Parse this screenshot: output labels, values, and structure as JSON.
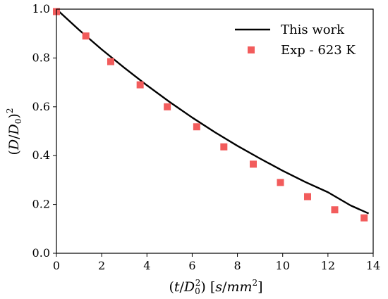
{
  "chart_data": {
    "type": "line",
    "title": "",
    "xlabel": "(t/D₀²) [s/mm²]",
    "ylabel": "(D/D₀)²",
    "xlim": [
      0,
      14
    ],
    "ylim": [
      0.0,
      1.0
    ],
    "xticks": [
      "0",
      "2",
      "4",
      "6",
      "8",
      "10",
      "12",
      "14"
    ],
    "yticks": [
      "0.0",
      "0.2",
      "0.4",
      "0.6",
      "0.8",
      "1.0"
    ],
    "grid": false,
    "legend_position": "top-right",
    "series": [
      {
        "name": "This work",
        "kind": "line",
        "color": "#000000",
        "x": [
          0,
          1,
          2,
          3,
          4,
          5,
          6,
          7,
          8,
          9,
          10,
          11,
          12,
          13,
          13.8
        ],
        "y": [
          1.0,
          0.915,
          0.835,
          0.76,
          0.688,
          0.62,
          0.556,
          0.496,
          0.44,
          0.388,
          0.338,
          0.292,
          0.25,
          0.196,
          0.163
        ]
      },
      {
        "name": "Exp - 623 K",
        "kind": "scatter",
        "color": "#f25c5c",
        "x": [
          0.0,
          1.3,
          2.4,
          3.7,
          4.9,
          6.2,
          7.4,
          8.7,
          9.9,
          11.1,
          12.3,
          13.6
        ],
        "y": [
          0.99,
          0.89,
          0.785,
          0.69,
          0.6,
          0.518,
          0.436,
          0.365,
          0.29,
          0.232,
          0.178,
          0.145
        ]
      }
    ]
  }
}
